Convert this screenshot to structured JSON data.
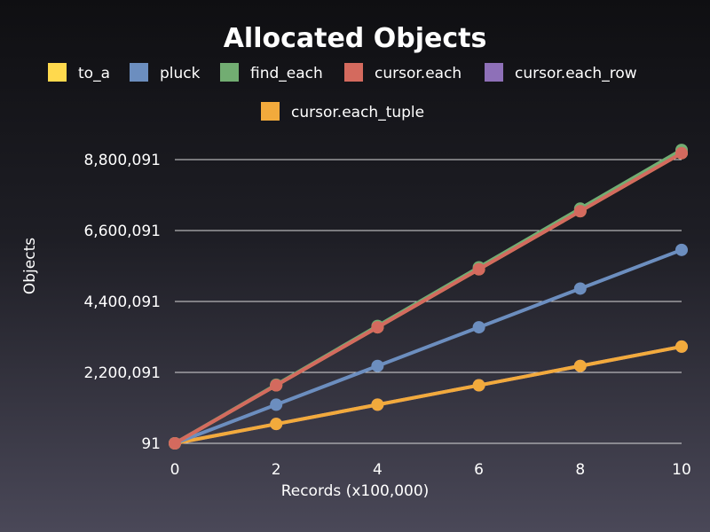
{
  "chart_data": {
    "type": "line",
    "title": "Allocated Objects",
    "xlabel": "Records (x100,000)",
    "ylabel": "Objects",
    "x": [
      0,
      2,
      4,
      6,
      8,
      10
    ],
    "xticks": [
      "0",
      "2",
      "4",
      "6",
      "8",
      "10"
    ],
    "yticks": [
      91,
      2200091,
      4400091,
      6600091,
      8800091
    ],
    "ytick_labels": [
      "91",
      "2,200,091",
      "4,400,091",
      "6,600,091",
      "8,800,091"
    ],
    "ylim": [
      91,
      8800091
    ],
    "xlim": [
      0,
      10
    ],
    "grid": true,
    "legend_position": "top",
    "series": [
      {
        "name": "to_a",
        "color": "#ffd94d",
        "values": [
          91,
          1800091,
          3600091,
          5400091,
          7200091,
          9000091
        ]
      },
      {
        "name": "pluck",
        "color": "#6c8ebf",
        "values": [
          91,
          1200091,
          2400091,
          3600091,
          4800091,
          6000091
        ]
      },
      {
        "name": "find_each",
        "color": "#72ad72",
        "values": [
          91,
          1820091,
          3640091,
          5460091,
          7280091,
          9100091
        ]
      },
      {
        "name": "cursor.each",
        "color": "#d46a5e",
        "values": [
          91,
          1800091,
          3600091,
          5400091,
          7200091,
          9000091
        ]
      },
      {
        "name": "cursor.each_row",
        "color": "#8e70b8",
        "values": [
          91,
          600091,
          1200091,
          1800091,
          2400091,
          3000091
        ]
      },
      {
        "name": "cursor.each_tuple",
        "color": "#f2aa3c",
        "values": [
          91,
          600091,
          1200091,
          1800091,
          2400091,
          3000091
        ]
      }
    ]
  }
}
